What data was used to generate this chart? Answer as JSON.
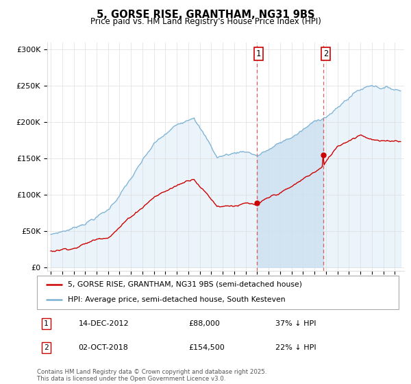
{
  "title": "5, GORSE RISE, GRANTHAM, NG31 9BS",
  "subtitle": "Price paid vs. HM Land Registry's House Price Index (HPI)",
  "ylabel_ticks": [
    "£0",
    "£50K",
    "£100K",
    "£150K",
    "£200K",
    "£250K",
    "£300K"
  ],
  "ytick_values": [
    0,
    50000,
    100000,
    150000,
    200000,
    250000,
    300000
  ],
  "ylim": [
    -5000,
    310000
  ],
  "xlim_start": 1994.7,
  "xlim_end": 2025.8,
  "hpi_color": "#7ab0d4",
  "price_color": "#cc0000",
  "hpi_fill_color": "#ddeef7",
  "hpi_shade_color": "#cce0f0",
  "sale1_year": 2012.96,
  "sale1_price": 88000,
  "sale1_date": "14-DEC-2012",
  "sale1_label": "37% ↓ HPI",
  "sale2_year": 2018.75,
  "sale2_price": 154500,
  "sale2_date": "02-OCT-2018",
  "sale2_label": "22% ↓ HPI",
  "legend_line1": "5, GORSE RISE, GRANTHAM, NG31 9BS (semi-detached house)",
  "legend_line2": "HPI: Average price, semi-detached house, South Kesteven",
  "footnote": "Contains HM Land Registry data © Crown copyright and database right 2025.\nThis data is licensed under the Open Government Licence v3.0.",
  "grid_color": "#dddddd",
  "title_fontsize": 10.5,
  "subtitle_fontsize": 8.5
}
